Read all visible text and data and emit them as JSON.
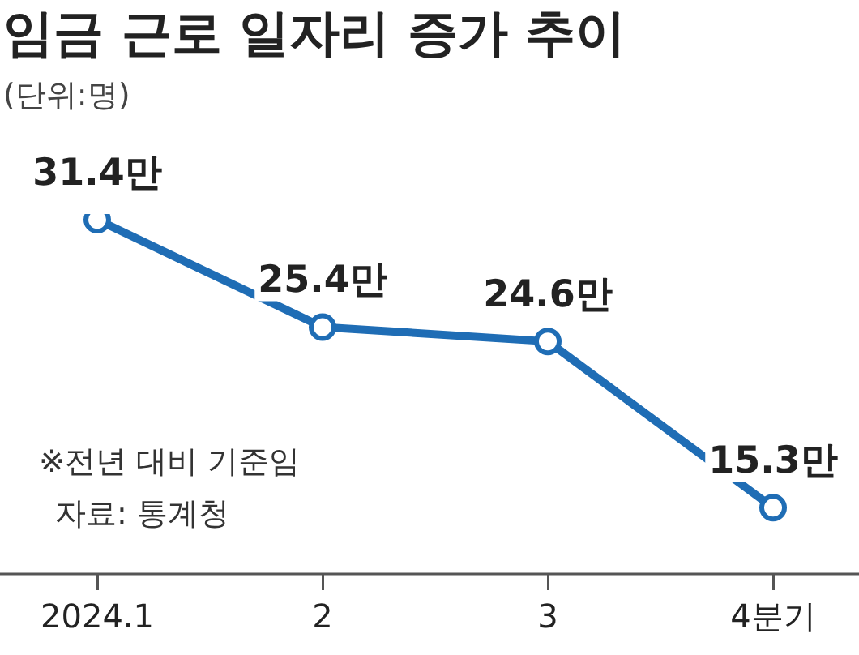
{
  "chart_data": {
    "type": "line",
    "title": "임금 근로 일자리 증가 추이",
    "subtitle": "(단위:명)",
    "categories": [
      "2024.1",
      "2",
      "3",
      "4분기"
    ],
    "series": [
      {
        "color": "#1f6db5",
        "values": [
          31.4,
          25.4,
          24.6,
          15.3
        ],
        "value_labels": [
          "31.4만",
          "25.4만",
          "24.6만",
          "15.3만"
        ]
      }
    ],
    "marker": "circle",
    "line_style": "solid",
    "grid": false,
    "legend": false,
    "tick_labels": "x",
    "annotations": [
      "※전년 대비 기준임",
      "자료: 통계청"
    ]
  }
}
